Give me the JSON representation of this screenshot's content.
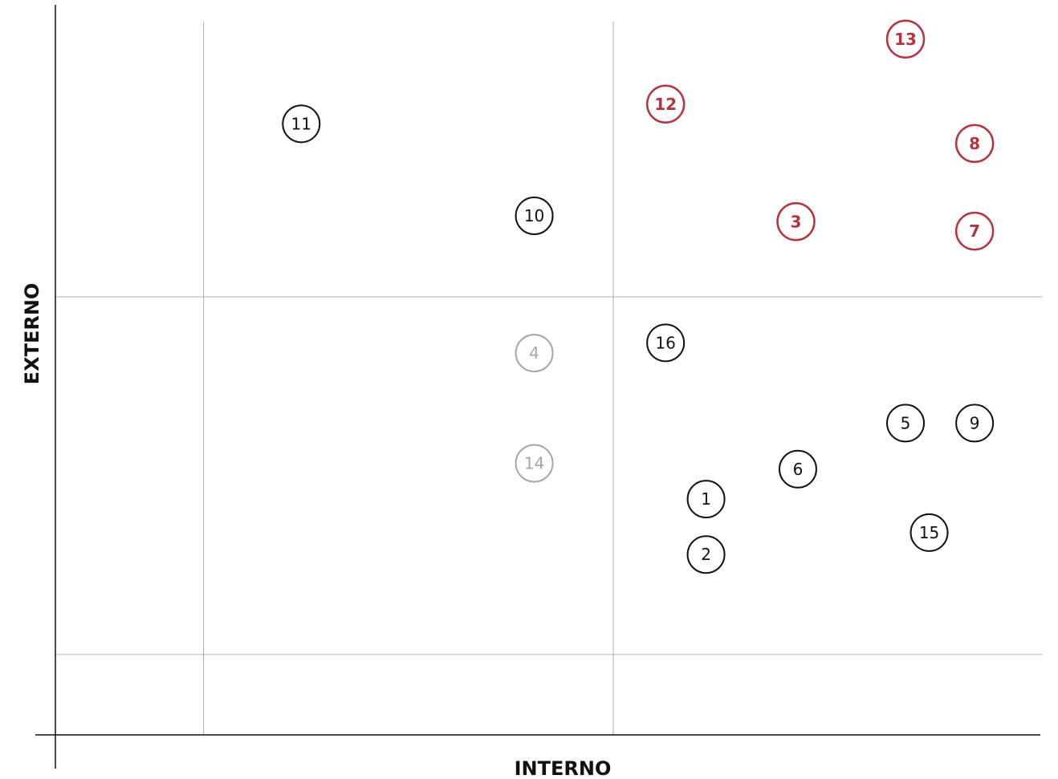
{
  "chart_data": {
    "type": "scatter",
    "title": "",
    "xlabel": "INTERNO",
    "ylabel": "EXTERNO",
    "xlim": [
      0,
      1
    ],
    "ylim": [
      0,
      1
    ],
    "x_dividers": [
      0.15,
      0.565
    ],
    "y_dividers": [
      0.11,
      0.6
    ],
    "grid": false,
    "series": [
      {
        "style": "highlight",
        "color": "#B5333E",
        "points": [
          {
            "label": "13",
            "x": 0.861,
            "y": 0.953
          },
          {
            "label": "12",
            "x": 0.618,
            "y": 0.864
          },
          {
            "label": "8",
            "x": 0.931,
            "y": 0.81
          },
          {
            "label": "3",
            "x": 0.75,
            "y": 0.703
          },
          {
            "label": "7",
            "x": 0.931,
            "y": 0.69
          }
        ]
      },
      {
        "style": "normal",
        "color": "#111111",
        "points": [
          {
            "label": "11",
            "x": 0.249,
            "y": 0.837
          },
          {
            "label": "10",
            "x": 0.485,
            "y": 0.711
          },
          {
            "label": "16",
            "x": 0.618,
            "y": 0.537
          },
          {
            "label": "5",
            "x": 0.861,
            "y": 0.427
          },
          {
            "label": "9",
            "x": 0.931,
            "y": 0.427
          },
          {
            "label": "6",
            "x": 0.752,
            "y": 0.364
          },
          {
            "label": "1",
            "x": 0.659,
            "y": 0.323
          },
          {
            "label": "2",
            "x": 0.659,
            "y": 0.247
          },
          {
            "label": "15",
            "x": 0.885,
            "y": 0.277
          }
        ]
      },
      {
        "style": "muted",
        "color": "#A6A6A6",
        "points": [
          {
            "label": "4",
            "x": 0.485,
            "y": 0.523
          },
          {
            "label": "14",
            "x": 0.485,
            "y": 0.372
          }
        ]
      }
    ]
  }
}
